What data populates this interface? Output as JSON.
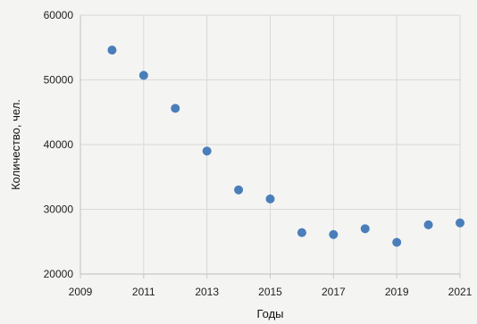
{
  "chart_data": {
    "type": "scatter",
    "title": "",
    "xlabel": "Годы",
    "ylabel": "Количество, чел.",
    "xlim": [
      2009,
      2021
    ],
    "ylim": [
      20000,
      60000
    ],
    "x_ticks": [
      "2009",
      "2011",
      "2013",
      "2015",
      "2017",
      "2019",
      "2021"
    ],
    "y_ticks": [
      "20000",
      "30000",
      "40000",
      "50000",
      "60000"
    ],
    "grid": true,
    "legend": "none",
    "colors": {
      "marker": "#4a7ebb",
      "grid": "#d9d9d9",
      "axis": "#c8c8c8",
      "background": "#f4f4f2"
    },
    "points": [
      {
        "x": 2010,
        "y": 54600
      },
      {
        "x": 2011,
        "y": 50700
      },
      {
        "x": 2012,
        "y": 45600
      },
      {
        "x": 2013,
        "y": 39000
      },
      {
        "x": 2014,
        "y": 33000
      },
      {
        "x": 2015,
        "y": 31600
      },
      {
        "x": 2016,
        "y": 26400
      },
      {
        "x": 2017,
        "y": 26100
      },
      {
        "x": 2018,
        "y": 27000
      },
      {
        "x": 2019,
        "y": 24900
      },
      {
        "x": 2020,
        "y": 27600
      },
      {
        "x": 2021,
        "y": 27900
      }
    ]
  }
}
